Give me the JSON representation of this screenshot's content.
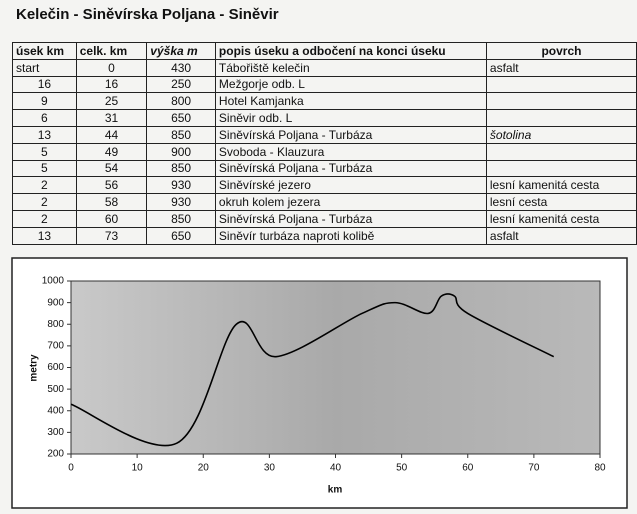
{
  "title": "Kelečin - Siněvírska Poljana - Siněvir",
  "table": {
    "header": [
      "úsek km",
      "celk. km",
      "výška m",
      "popis úseku a odbočení na konci úseku",
      "povrch"
    ],
    "rows": [
      [
        "start",
        "0",
        "430",
        "Tábořiště kelečin",
        "asfalt"
      ],
      [
        "16",
        "16",
        "250",
        "Mežgorje odb. L",
        null
      ],
      [
        "9",
        "25",
        "800",
        "Hotel Kamjanka",
        null
      ],
      [
        "6",
        "31",
        "650",
        "Siněvir odb. L",
        null
      ],
      [
        "13",
        "44",
        "850",
        "Siněvírská Poljana - Turbáza",
        "šotolina"
      ],
      [
        "5",
        "49",
        "900",
        "Svoboda - Klauzura",
        null
      ],
      [
        "5",
        "54",
        "850",
        "Siněvírská Poljana - Turbáza",
        null
      ],
      [
        "2",
        "56",
        "930",
        "Siněvírské jezero",
        "lesní kamenitá cesta"
      ],
      [
        "2",
        "58",
        "930",
        "okruh kolem jezera",
        "lesní cesta"
      ],
      [
        "2",
        "60",
        "850",
        "Siněvírská Poljana - Turbáza",
        "lesní kamenitá cesta"
      ],
      [
        "13",
        "73",
        "650",
        "Siněvír turbáza naproti kolibě",
        "asfalt"
      ]
    ]
  },
  "chart_data": {
    "type": "line",
    "x_label": "km",
    "y_label": "metry",
    "x": [
      0,
      16,
      25,
      31,
      44,
      49,
      54,
      56,
      58,
      60,
      73
    ],
    "values": [
      430,
      250,
      800,
      650,
      850,
      900,
      850,
      930,
      930,
      850,
      650
    ],
    "color": "#000000",
    "xlim": [
      0,
      80
    ],
    "xticks": [
      0,
      10,
      20,
      30,
      40,
      50,
      60,
      70,
      80
    ],
    "ylim": [
      200,
      1000
    ],
    "yticks": [
      200,
      300,
      400,
      500,
      600,
      700,
      800,
      900,
      1000
    ],
    "grid": false,
    "smooth": true
  }
}
